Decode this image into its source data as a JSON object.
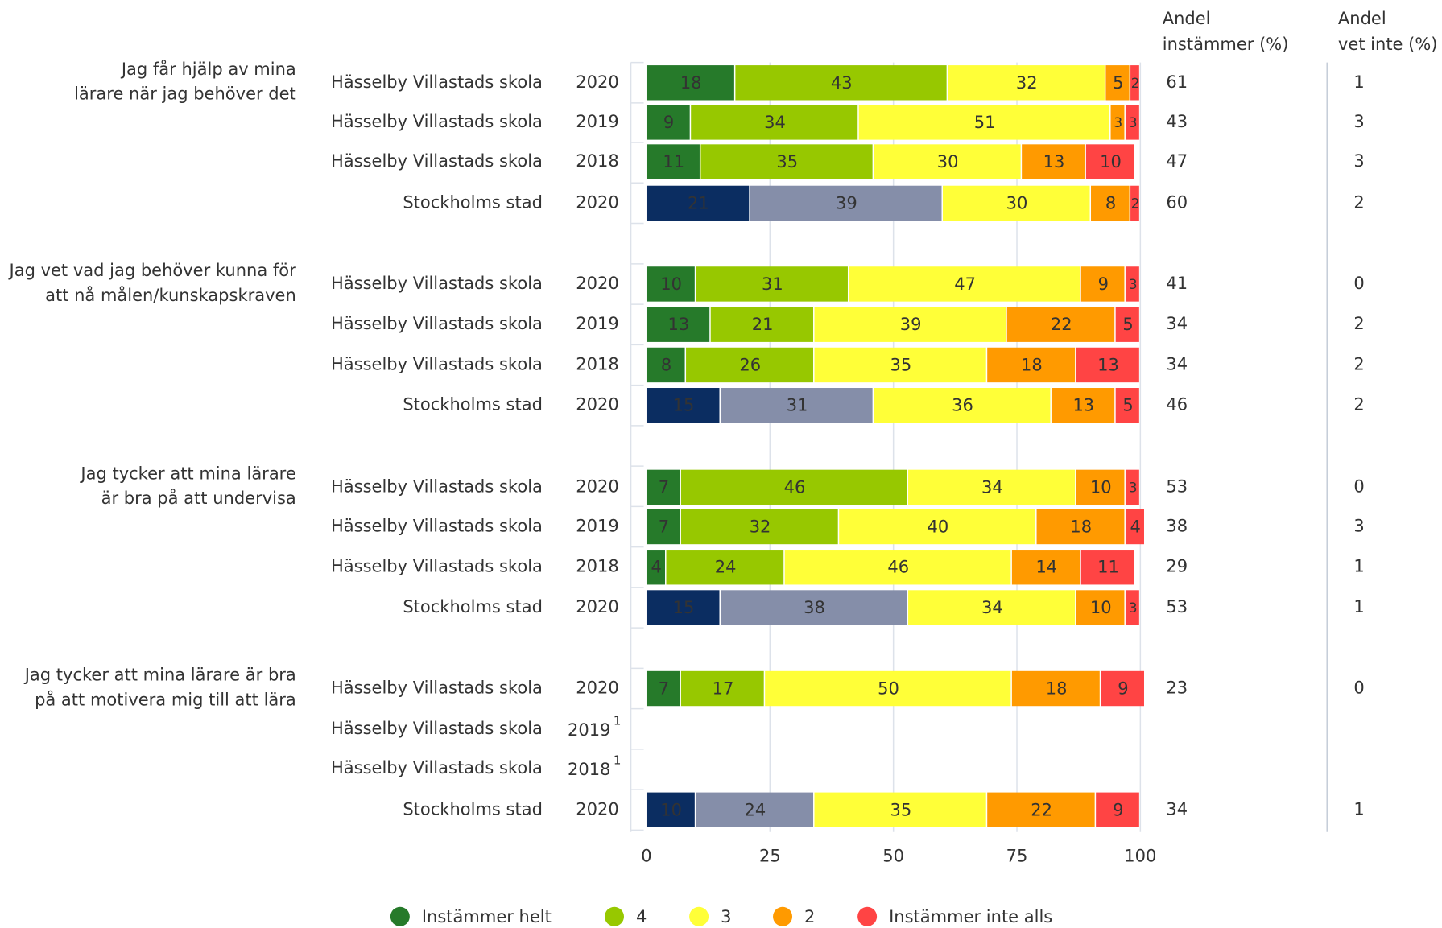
{
  "chart_data": {
    "type": "bar",
    "orientation": "horizontal",
    "stacked": true,
    "groups": [
      {
        "label": [
          "Jag får hjälp av mina",
          "lärare när jag behöver det"
        ],
        "rows": [
          0,
          1,
          2,
          3
        ]
      },
      {
        "label": [
          "Jag vet vad jag behöver kunna för",
          "att nå målen/kunskapskraven"
        ],
        "rows": [
          4,
          5,
          6,
          7
        ]
      },
      {
        "label": [
          "Jag tycker att mina lärare",
          "är bra på att undervisa"
        ],
        "rows": [
          8,
          9,
          10,
          11
        ]
      },
      {
        "label": [
          "Jag tycker att mina lärare är bra",
          "på att motivera mig till att lära"
        ],
        "rows": [
          12,
          13,
          14,
          15
        ]
      }
    ],
    "categories": [
      "Hässelby Villastads skola",
      "Hässelby Villastads skola",
      "Hässelby Villastads skola",
      "Stockholms stad",
      "Hässelby Villastads skola",
      "Hässelby Villastads skola",
      "Hässelby Villastads skola",
      "Stockholms stad",
      "Hässelby Villastads skola",
      "Hässelby Villastads skola",
      "Hässelby Villastads skola",
      "Stockholms stad",
      "Hässelby Villastads skola",
      "Hässelby Villastads skola",
      "Hässelby Villastads skola",
      "Stockholms stad"
    ],
    "years": [
      "2020",
      "2019",
      "2018",
      "2020",
      "2020",
      "2019",
      "2018",
      "2020",
      "2020",
      "2019",
      "2018",
      "2020",
      "2020",
      "2019",
      "2018",
      "2020"
    ],
    "year_notes": [
      null,
      null,
      null,
      null,
      null,
      null,
      null,
      null,
      null,
      null,
      null,
      null,
      null,
      "1",
      "1",
      null
    ],
    "reference_rows": [
      3,
      7,
      11,
      15
    ],
    "reference_colors": [
      "#0b2d61",
      "#858ea9"
    ],
    "series": [
      {
        "name": "Instämmer helt",
        "color": "#267a2a",
        "label_color": "#ffffff",
        "values": [
          18,
          9,
          11,
          21,
          10,
          13,
          8,
          15,
          7,
          7,
          4,
          15,
          7,
          null,
          null,
          10
        ]
      },
      {
        "name": "4",
        "color": "#97c800",
        "label_color": "#ffffff",
        "values": [
          43,
          34,
          35,
          39,
          31,
          21,
          26,
          31,
          46,
          32,
          24,
          38,
          17,
          null,
          null,
          24
        ]
      },
      {
        "name": "3",
        "color": "#ffff38",
        "label_color": "#000000",
        "values": [
          32,
          51,
          30,
          30,
          47,
          39,
          35,
          36,
          34,
          40,
          46,
          34,
          50,
          null,
          null,
          35
        ]
      },
      {
        "name": "2",
        "color": "#ff9a00",
        "label_color": "#ffffff",
        "values": [
          5,
          3,
          13,
          8,
          9,
          22,
          18,
          13,
          10,
          18,
          14,
          10,
          18,
          null,
          null,
          22
        ]
      },
      {
        "name": "Instämmer inte alls",
        "color": "#ff4444",
        "label_color": "#ffffff",
        "values": [
          2,
          3,
          10,
          2,
          3,
          5,
          13,
          5,
          3,
          4,
          11,
          3,
          9,
          null,
          null,
          9
        ]
      }
    ],
    "columns": [
      {
        "header": [
          "Andel",
          "instämmer (%)"
        ],
        "values": [
          61,
          43,
          47,
          60,
          41,
          34,
          34,
          46,
          53,
          38,
          29,
          53,
          23,
          null,
          null,
          34
        ]
      },
      {
        "header": [
          "Andel",
          "vet inte (%)"
        ],
        "values": [
          1,
          3,
          3,
          2,
          0,
          2,
          2,
          2,
          0,
          3,
          1,
          1,
          0,
          null,
          null,
          1
        ]
      }
    ],
    "xlim": [
      0,
      100
    ],
    "xticks": [
      0,
      25,
      50,
      75,
      100
    ],
    "grid": true,
    "legend": "bottom"
  }
}
